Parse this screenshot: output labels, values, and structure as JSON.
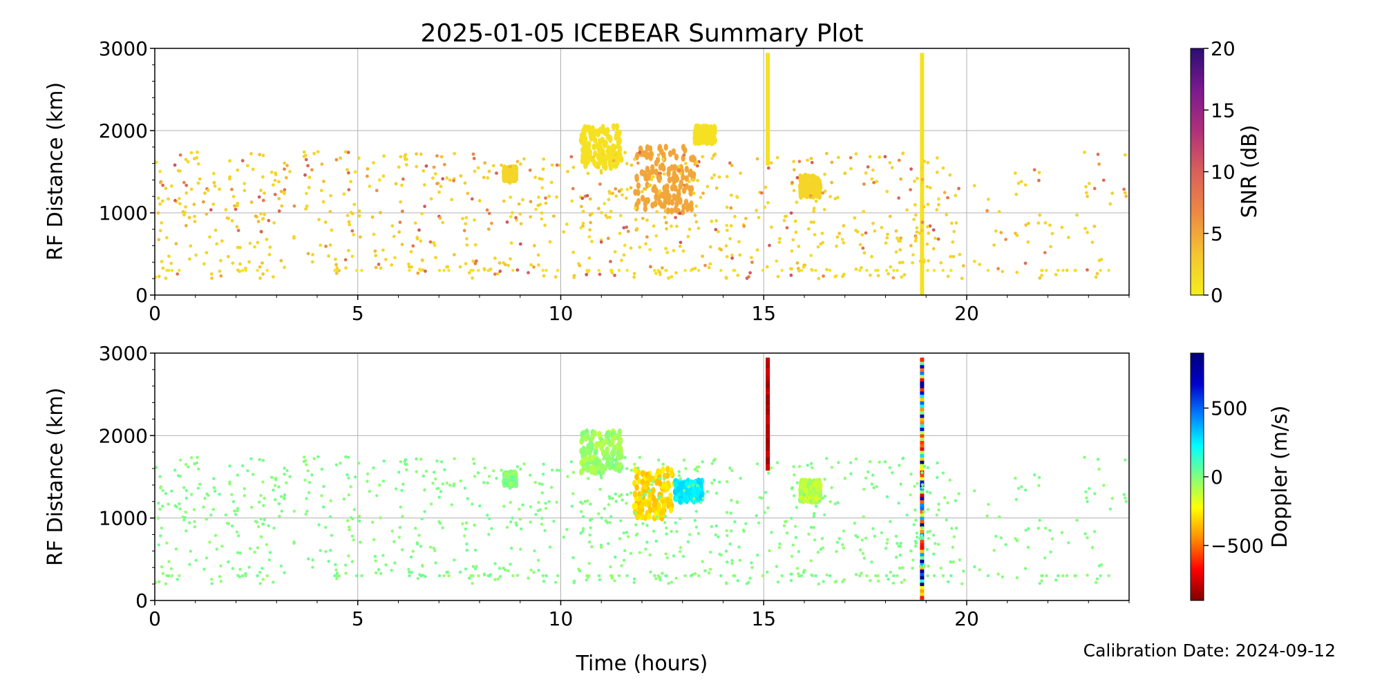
{
  "title": "2025-01-05 ICEBEAR Summary Plot",
  "xlabel": "Time (hours)",
  "footer": "Calibration Date: 2024-09-12",
  "colors": {
    "snr_scale": [
      "#f5ee1c",
      "#f4c430",
      "#ee8844",
      "#d9605a",
      "#b0307a",
      "#7a1a8e",
      "#2a0e72"
    ],
    "doppler_scale": [
      "#800000",
      "#ff0000",
      "#ff8c00",
      "#ffff00",
      "#80ff80",
      "#00ffff",
      "#0080ff",
      "#0000cd",
      "#00007a"
    ],
    "grid": "#b0b0b0"
  },
  "chart_data": [
    {
      "type": "scatter",
      "panel": "top",
      "title": "2025-01-05 ICEBEAR Summary Plot",
      "xlabel": "",
      "ylabel": "RF Distance (km)",
      "xlim": [
        0,
        24
      ],
      "ylim": [
        0,
        3000
      ],
      "xticks": [
        0,
        5,
        10,
        15,
        20
      ],
      "yticks": [
        0,
        1000,
        2000,
        3000
      ],
      "grid": true,
      "color_variable": "SNR (dB)",
      "colorbar": {
        "label": "SNR (dB)",
        "min": 0,
        "max": 20,
        "ticks": [
          0,
          5,
          10,
          15,
          20
        ]
      },
      "features": [
        {
          "kind": "cluster",
          "x_range": [
            10.5,
            11.5
          ],
          "y_range": [
            1550,
            2050
          ],
          "snr": 1
        },
        {
          "kind": "cluster",
          "x_range": [
            11.8,
            13.3
          ],
          "y_range": [
            1000,
            1800
          ],
          "snr": 5
        },
        {
          "kind": "cluster",
          "x_range": [
            8.6,
            8.9
          ],
          "y_range": [
            1400,
            1550
          ],
          "snr": 2
        },
        {
          "kind": "cluster",
          "x_range": [
            15.9,
            16.4
          ],
          "y_range": [
            1200,
            1450
          ],
          "snr": 2
        },
        {
          "kind": "cluster",
          "x_range": [
            13.3,
            13.8
          ],
          "y_range": [
            1850,
            2050
          ],
          "snr": 1
        },
        {
          "kind": "vertical_band",
          "x": 15.1,
          "y_range": [
            1600,
            2950
          ],
          "snr": 1
        },
        {
          "kind": "vertical_band",
          "x": 18.9,
          "y_range": [
            0,
            2950
          ],
          "snr": 1
        },
        {
          "kind": "scattered",
          "x_range": [
            0,
            24
          ],
          "y_range": [
            200,
            1800
          ],
          "snr_range": [
            1,
            12
          ]
        },
        {
          "kind": "range_gate_line",
          "y": 300,
          "x_range": [
            0,
            24
          ],
          "snr": 1
        }
      ]
    },
    {
      "type": "scatter",
      "panel": "bottom",
      "xlabel": "Time (hours)",
      "ylabel": "RF Distance (km)",
      "xlim": [
        0,
        24
      ],
      "ylim": [
        0,
        3000
      ],
      "xticks": [
        0,
        5,
        10,
        15,
        20
      ],
      "yticks": [
        0,
        1000,
        2000,
        3000
      ],
      "grid": true,
      "color_variable": "Doppler (m/s)",
      "colorbar": {
        "label": "Doppler (m/s)",
        "min": -900,
        "max": 900,
        "ticks": [
          -500,
          0,
          500
        ]
      },
      "features": [
        {
          "kind": "cluster",
          "x_range": [
            10.5,
            11.5
          ],
          "y_range": [
            1550,
            2050
          ],
          "doppler": -50
        },
        {
          "kind": "cluster",
          "x_range": [
            11.8,
            12.8
          ],
          "y_range": [
            1000,
            1600
          ],
          "doppler": -300
        },
        {
          "kind": "cluster",
          "x_range": [
            12.8,
            13.5
          ],
          "y_range": [
            1200,
            1450
          ],
          "doppler": 250
        },
        {
          "kind": "cluster",
          "x_range": [
            8.6,
            8.9
          ],
          "y_range": [
            1400,
            1550
          ],
          "doppler": 0
        },
        {
          "kind": "cluster",
          "x_range": [
            15.9,
            16.4
          ],
          "y_range": [
            1200,
            1450
          ],
          "doppler": -100
        },
        {
          "kind": "vertical_band",
          "x": 15.1,
          "y_range": [
            1600,
            2950
          ],
          "doppler": -800
        },
        {
          "kind": "vertical_band",
          "x": 18.9,
          "y_range": [
            0,
            2950
          ],
          "doppler": "mixed"
        },
        {
          "kind": "scattered",
          "x_range": [
            0,
            24
          ],
          "y_range": [
            200,
            1800
          ],
          "doppler": 0
        },
        {
          "kind": "range_gate_line",
          "y": 300,
          "x_range": [
            0,
            24
          ],
          "doppler": 0
        }
      ]
    }
  ]
}
